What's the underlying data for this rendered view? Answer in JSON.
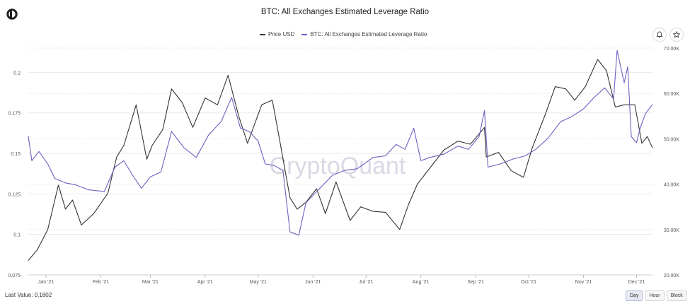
{
  "header": {
    "title": "BTC: All Exchanges Estimated Leverage Ratio",
    "logo_icon": "cryptoquant-logo-icon"
  },
  "toolbar": {
    "bell_icon": "bell-icon",
    "star_icon": "star-icon"
  },
  "footer": {
    "last_value_label": "Last Value:",
    "last_value": "0.1802",
    "range_buttons": [
      "Day",
      "Hour",
      "Block"
    ],
    "active_range": "Day"
  },
  "watermark": "CryptoQuant",
  "colors": {
    "price": "#333333",
    "leverage": "#6f5fc0",
    "grid": "#e8e8e8"
  },
  "chart_data": {
    "type": "line",
    "title": "BTC: All Exchanges Estimated Leverage Ratio",
    "x_ticks": [
      "Jan '21",
      "Feb '21",
      "Mar '21",
      "Apr '21",
      "May '21",
      "Jun '21",
      "Jul '21",
      "Aug '21",
      "Sep '21",
      "Oct '21",
      "Nov '21",
      "Dec '21"
    ],
    "x_range": [
      "2020-12-22",
      "2021-12-10"
    ],
    "y_left": {
      "ticks": [
        "0.075",
        "0.1",
        "0.125",
        "0.15",
        "0.175",
        "0.2"
      ],
      "range": [
        0.075,
        0.215
      ]
    },
    "y_right": {
      "ticks": [
        "20.00K",
        "30.00K",
        "40.00K",
        "50.00K",
        "60.00K",
        "70.00K"
      ],
      "range": [
        20000,
        70000
      ]
    },
    "grid": true,
    "legend_position": "top-center",
    "series": [
      {
        "name": "Price USD",
        "axis": "right",
        "points": [
          [
            "2020-12-22",
            23200
          ],
          [
            "2020-12-27",
            25500
          ],
          [
            "2021-01-02",
            30000
          ],
          [
            "2021-01-08",
            39800
          ],
          [
            "2021-01-12",
            34500
          ],
          [
            "2021-01-16",
            36500
          ],
          [
            "2021-01-21",
            31000
          ],
          [
            "2021-01-28",
            33500
          ],
          [
            "2021-02-05",
            38000
          ],
          [
            "2021-02-10",
            46000
          ],
          [
            "2021-02-14",
            48500
          ],
          [
            "2021-02-21",
            57500
          ],
          [
            "2021-02-27",
            45500
          ],
          [
            "2021-03-02",
            48500
          ],
          [
            "2021-03-08",
            52000
          ],
          [
            "2021-03-13",
            61000
          ],
          [
            "2021-03-19",
            58000
          ],
          [
            "2021-03-25",
            52500
          ],
          [
            "2021-04-01",
            59000
          ],
          [
            "2021-04-08",
            57500
          ],
          [
            "2021-04-14",
            64000
          ],
          [
            "2021-04-20",
            55000
          ],
          [
            "2021-04-25",
            49000
          ],
          [
            "2021-05-03",
            57500
          ],
          [
            "2021-05-09",
            58500
          ],
          [
            "2021-05-13",
            50000
          ],
          [
            "2021-05-19",
            37000
          ],
          [
            "2021-05-23",
            34500
          ],
          [
            "2021-05-28",
            36000
          ],
          [
            "2021-06-03",
            39000
          ],
          [
            "2021-06-08",
            33500
          ],
          [
            "2021-06-14",
            40500
          ],
          [
            "2021-06-22",
            32000
          ],
          [
            "2021-06-28",
            35000
          ],
          [
            "2021-07-05",
            34000
          ],
          [
            "2021-07-12",
            33800
          ],
          [
            "2021-07-20",
            30000
          ],
          [
            "2021-07-25",
            35500
          ],
          [
            "2021-07-30",
            40000
          ],
          [
            "2021-08-07",
            44000
          ],
          [
            "2021-08-14",
            47500
          ],
          [
            "2021-08-22",
            49500
          ],
          [
            "2021-08-29",
            48800
          ],
          [
            "2021-09-06",
            52500
          ],
          [
            "2021-09-07",
            46000
          ],
          [
            "2021-09-14",
            47000
          ],
          [
            "2021-09-21",
            43000
          ],
          [
            "2021-09-28",
            41500
          ],
          [
            "2021-10-03",
            48000
          ],
          [
            "2021-10-10",
            55000
          ],
          [
            "2021-10-16",
            61500
          ],
          [
            "2021-10-22",
            61000
          ],
          [
            "2021-10-27",
            58500
          ],
          [
            "2021-11-02",
            61500
          ],
          [
            "2021-11-09",
            67500
          ],
          [
            "2021-11-14",
            65000
          ],
          [
            "2021-11-19",
            57000
          ],
          [
            "2021-11-24",
            57500
          ],
          [
            "2021-11-30",
            57500
          ],
          [
            "2021-12-04",
            49000
          ],
          [
            "2021-12-07",
            50500
          ],
          [
            "2021-12-10",
            48000
          ]
        ]
      },
      {
        "name": "BTC: All Exchanges Estimated Leverage Ratio",
        "axis": "left",
        "points": [
          [
            "2020-12-22",
            0.1605
          ],
          [
            "2020-12-24",
            0.1455
          ],
          [
            "2020-12-28",
            0.1512
          ],
          [
            "2021-01-02",
            0.1435
          ],
          [
            "2021-01-06",
            0.1345
          ],
          [
            "2021-01-12",
            0.1318
          ],
          [
            "2021-01-18",
            0.1305
          ],
          [
            "2021-01-25",
            0.1275
          ],
          [
            "2021-02-03",
            0.1265
          ],
          [
            "2021-02-09",
            0.1415
          ],
          [
            "2021-02-14",
            0.1455
          ],
          [
            "2021-02-19",
            0.1365
          ],
          [
            "2021-02-24",
            0.1285
          ],
          [
            "2021-03-01",
            0.1355
          ],
          [
            "2021-03-07",
            0.1385
          ],
          [
            "2021-03-13",
            0.1635
          ],
          [
            "2021-03-20",
            0.1535
          ],
          [
            "2021-03-27",
            0.1475
          ],
          [
            "2021-04-03",
            0.1615
          ],
          [
            "2021-04-10",
            0.1695
          ],
          [
            "2021-04-16",
            0.1845
          ],
          [
            "2021-04-21",
            0.1655
          ],
          [
            "2021-04-26",
            0.1635
          ],
          [
            "2021-05-01",
            0.1575
          ],
          [
            "2021-05-05",
            0.1435
          ],
          [
            "2021-05-10",
            0.1425
          ],
          [
            "2021-05-15",
            0.1395
          ],
          [
            "2021-05-19",
            0.1015
          ],
          [
            "2021-05-24",
            0.0995
          ],
          [
            "2021-05-28",
            0.1195
          ],
          [
            "2021-06-04",
            0.1275
          ],
          [
            "2021-06-12",
            0.1365
          ],
          [
            "2021-06-19",
            0.1395
          ],
          [
            "2021-06-26",
            0.1405
          ],
          [
            "2021-07-05",
            0.1475
          ],
          [
            "2021-07-12",
            0.1485
          ],
          [
            "2021-07-18",
            0.1555
          ],
          [
            "2021-07-23",
            0.1525
          ],
          [
            "2021-07-28",
            0.1655
          ],
          [
            "2021-08-01",
            0.1455
          ],
          [
            "2021-08-06",
            0.1475
          ],
          [
            "2021-08-14",
            0.1495
          ],
          [
            "2021-08-22",
            0.1545
          ],
          [
            "2021-08-28",
            0.1525
          ],
          [
            "2021-09-03",
            0.1605
          ],
          [
            "2021-09-06",
            0.1765
          ],
          [
            "2021-09-08",
            0.1415
          ],
          [
            "2021-09-15",
            0.1435
          ],
          [
            "2021-09-22",
            0.1465
          ],
          [
            "2021-09-29",
            0.1485
          ],
          [
            "2021-10-05",
            0.1525
          ],
          [
            "2021-10-12",
            0.1595
          ],
          [
            "2021-10-19",
            0.1695
          ],
          [
            "2021-10-25",
            0.1725
          ],
          [
            "2021-11-01",
            0.1775
          ],
          [
            "2021-11-07",
            0.1845
          ],
          [
            "2021-11-13",
            0.1905
          ],
          [
            "2021-11-18",
            0.1835
          ],
          [
            "2021-11-20",
            0.2135
          ],
          [
            "2021-11-24",
            0.1935
          ],
          [
            "2021-11-26",
            0.2035
          ],
          [
            "2021-11-28",
            0.1605
          ],
          [
            "2021-12-01",
            0.1565
          ],
          [
            "2021-12-03",
            0.1655
          ],
          [
            "2021-12-06",
            0.1745
          ],
          [
            "2021-12-10",
            0.1802
          ]
        ]
      }
    ]
  }
}
